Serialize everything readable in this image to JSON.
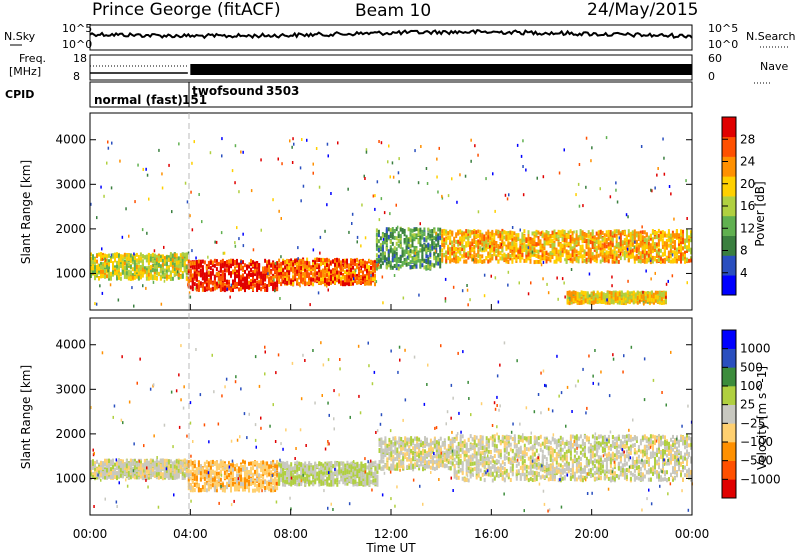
{
  "header": {
    "station": "Prince George (fitACF)",
    "beam": "Beam 10",
    "date": "24/May/2015"
  },
  "status_panels": {
    "nsky_label": "N.Sky",
    "nsearch_label": "N.Search",
    "freq_label_line1": "Freq.",
    "freq_label_line2": "[MHz]",
    "nave_label": "Nave",
    "cpid_label": "CPID",
    "noise_ticks_left": [
      "10^5",
      "10^0"
    ],
    "noise_ticks_right": [
      "10^5",
      "10^0"
    ],
    "freq_ticks": [
      "18",
      "8"
    ],
    "nave_ticks": [
      "60",
      "0"
    ],
    "cpid_segments": [
      {
        "label": "normal (fast)",
        "start_hour": 0,
        "end_hour": 3.9
      },
      {
        "label": "151",
        "start_hour": 3.9,
        "end_hour": 4.0
      },
      {
        "label": "twofsound",
        "start_hour": 4.0,
        "end_hour": 24
      },
      {
        "label": "3503",
        "start_hour": 4.0,
        "end_hour": 24
      }
    ]
  },
  "chart_data": [
    {
      "type": "heatmap",
      "name": "Power",
      "ylabel": "Slant Range [km]",
      "xlabel": "Time UT",
      "xlim_hours": [
        0,
        24
      ],
      "ylim_km": [
        180,
        4600
      ],
      "y_ticks": [
        "1000",
        "2000",
        "3000",
        "4000"
      ],
      "colorbar": {
        "label": "Power [dB]",
        "ticks": [
          "28",
          "24",
          "20",
          "16",
          "12",
          "8",
          "4"
        ],
        "range": [
          0,
          30
        ],
        "colors": [
          "#0000ff",
          "#2a4fbf",
          "#3a7f3f",
          "#60b050",
          "#b0d040",
          "#ffd000",
          "#ff9000",
          "#ff5000",
          "#e00000"
        ]
      },
      "echo_regions": [
        {
          "t0": 0.0,
          "t1": 3.9,
          "r_center": 1200,
          "r_halfwidth": 280,
          "power_db": 16
        },
        {
          "t0": 3.9,
          "t1": 7.5,
          "r_center": 1000,
          "r_halfwidth": 330,
          "power_db": 27
        },
        {
          "t0": 7.5,
          "t1": 11.4,
          "r_center": 1080,
          "r_halfwidth": 280,
          "power_db": 24
        },
        {
          "t0": 11.4,
          "t1": 14.0,
          "r_center": 1600,
          "r_halfwidth": 450,
          "power_db": 10
        },
        {
          "t0": 14.0,
          "t1": 24.0,
          "r_center": 1650,
          "r_halfwidth": 350,
          "power_db": 20
        },
        {
          "t0": 19.0,
          "t1": 23.0,
          "r_center": 500,
          "r_halfwidth": 120,
          "power_db": 18
        }
      ]
    },
    {
      "type": "heatmap",
      "name": "Velocity",
      "ylabel": "Slant Range [km]",
      "xlabel": "Time UT",
      "xlim_hours": [
        0,
        24
      ],
      "ylim_km": [
        180,
        4600
      ],
      "y_ticks": [
        "1000",
        "2000",
        "3000",
        "4000"
      ],
      "x_ticks": [
        "00:00",
        "04:00",
        "08:00",
        "12:00",
        "16:00",
        "20:00",
        "00:00"
      ],
      "colorbar": {
        "label": "Velocity [m s^-1]",
        "ticks": [
          "1000",
          "500",
          "100",
          "25",
          "−25",
          "−100",
          "−500",
          "−1000"
        ],
        "range": [
          -1200,
          1200
        ],
        "colors": [
          "#e00000",
          "#ff5000",
          "#ff9000",
          "#ffd070",
          "#c8c8c0",
          "#b0d040",
          "#3c8c3c",
          "#2a4fbf",
          "#0000ff"
        ]
      },
      "echo_regions": [
        {
          "t0": 0.0,
          "t1": 3.9,
          "r_center": 1250,
          "r_halfwidth": 200,
          "velocity": 0
        },
        {
          "t0": 3.9,
          "t1": 7.5,
          "r_center": 1100,
          "r_halfwidth": 330,
          "velocity": -300
        },
        {
          "t0": 7.5,
          "t1": 11.5,
          "r_center": 1150,
          "r_halfwidth": 250,
          "velocity": 150
        },
        {
          "t0": 11.5,
          "t1": 14.5,
          "r_center": 1600,
          "r_halfwidth": 350,
          "velocity": 0
        },
        {
          "t0": 14.5,
          "t1": 24.0,
          "r_center": 1500,
          "r_halfwidth": 500,
          "velocity": 10
        }
      ]
    }
  ]
}
